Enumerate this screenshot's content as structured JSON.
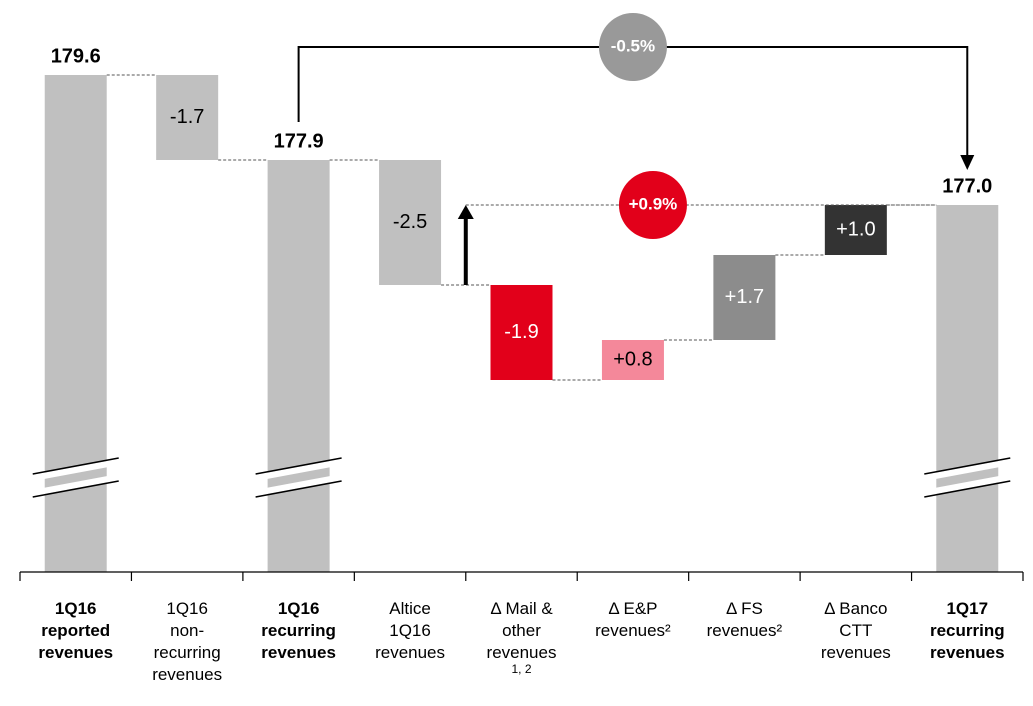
{
  "chart_data": {
    "type": "waterfall",
    "categories": [
      [
        "1Q16",
        "reported",
        "revenues"
      ],
      [
        "1Q16",
        "non-",
        "recurring",
        "revenues"
      ],
      [
        "1Q16",
        "recurring",
        "revenues"
      ],
      [
        "Altice",
        "1Q16",
        "revenues"
      ],
      [
        "Δ Mail &",
        "other",
        "revenues",
        "1, 2"
      ],
      [
        "Δ E&P",
        "revenues²"
      ],
      [
        "Δ FS",
        "revenues²"
      ],
      [
        "Δ Banco",
        "CTT",
        "revenues"
      ],
      [
        "1Q17",
        "recurring",
        "revenues"
      ]
    ],
    "measure": [
      "total",
      "relative",
      "total",
      "relative",
      "relative",
      "relative",
      "relative",
      "relative",
      "total"
    ],
    "values": [
      179.6,
      -1.7,
      177.9,
      -2.5,
      -1.9,
      0.8,
      1.7,
      1.0,
      177.0
    ],
    "value_labels": [
      "179.6",
      "-1.7",
      "177.9",
      "-2.5",
      "-1.9",
      "+0.8",
      "+1.7",
      "+1.0",
      "177.0"
    ],
    "colors": [
      "#c0c0c0",
      "#c0c0c0",
      "#c0c0c0",
      "#c0c0c0",
      "#e2001a",
      "#f4889a",
      "#8c8c8c",
      "#333333",
      "#c0c0c0"
    ],
    "annotations": [
      {
        "text": "-0.5%",
        "color": "#999999"
      },
      {
        "text": "+0.9%",
        "color": "#e2001a"
      }
    ]
  }
}
